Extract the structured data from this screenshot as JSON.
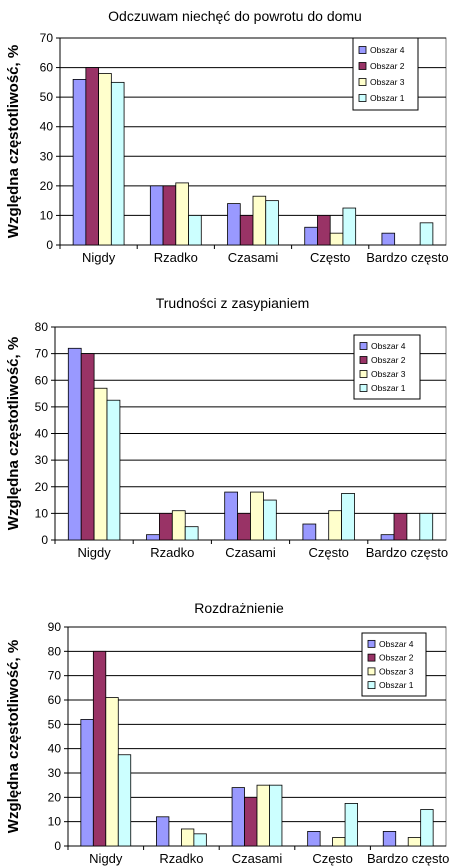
{
  "chart_data": [
    {
      "type": "bar",
      "title": "Odczuwam niechęć do powrotu do domu",
      "ylabel": "Względna częstotliwość, %",
      "xlabel": "",
      "categories": [
        "Nigdy",
        "Rzadko",
        "Czasami",
        "Często",
        "Bardzo często"
      ],
      "series": [
        {
          "name": "Obszar 4",
          "values": [
            56,
            20,
            14,
            6,
            4
          ]
        },
        {
          "name": "Obszar 2",
          "values": [
            60,
            20,
            10,
            10,
            0
          ]
        },
        {
          "name": "Obszar 3",
          "values": [
            58,
            21,
            16.5,
            4,
            0
          ]
        },
        {
          "name": "Obszar 1",
          "values": [
            55,
            10,
            15,
            12.5,
            7.5
          ]
        }
      ],
      "ylim": [
        0,
        70
      ],
      "yticks": [
        0,
        10,
        20,
        30,
        40,
        50,
        60,
        70
      ],
      "grid": true,
      "legend": "top-right"
    },
    {
      "type": "bar",
      "title": "Trudności z zasypianiem",
      "ylabel": "Względna częstotliwość, %",
      "xlabel": "",
      "categories": [
        "Nigdy",
        "Rzadko",
        "Czasami",
        "Często",
        "Bardzo często"
      ],
      "series": [
        {
          "name": "Obszar 4",
          "values": [
            72,
            2,
            18,
            6,
            2
          ]
        },
        {
          "name": "Obszar 2",
          "values": [
            70,
            10,
            10,
            0,
            10
          ]
        },
        {
          "name": "Obszar 3",
          "values": [
            57,
            11,
            18,
            11,
            0
          ]
        },
        {
          "name": "Obszar 1",
          "values": [
            52.5,
            5,
            15,
            17.5,
            10
          ]
        }
      ],
      "ylim": [
        0,
        80
      ],
      "yticks": [
        0,
        10,
        20,
        30,
        40,
        50,
        60,
        70,
        80
      ],
      "grid": true,
      "legend": "top-right"
    },
    {
      "type": "bar",
      "title": "Rozdrażnienie",
      "ylabel": "Względna częstotliwość, %",
      "xlabel": "",
      "categories": [
        "Nigdy",
        "Rzadko",
        "Czasami",
        "Często",
        "Bardzo często"
      ],
      "series": [
        {
          "name": "Obszar 4",
          "values": [
            52,
            12,
            24,
            6,
            6
          ]
        },
        {
          "name": "Obszar 2",
          "values": [
            80,
            0,
            20,
            0,
            0
          ]
        },
        {
          "name": "Obszar 3",
          "values": [
            61,
            7,
            25,
            3.5,
            3.5
          ]
        },
        {
          "name": "Obszar 1",
          "values": [
            37.5,
            5,
            25,
            17.5,
            15
          ]
        }
      ],
      "ylim": [
        0,
        90
      ],
      "yticks": [
        0,
        10,
        20,
        30,
        40,
        50,
        60,
        70,
        80,
        90
      ],
      "grid": true,
      "legend": "top-right"
    }
  ],
  "colors": {
    "Obszar 4": "#9999ff",
    "Obszar 2": "#993366",
    "Obszar 3": "#ffffcc",
    "Obszar 1": "#ccffff"
  }
}
